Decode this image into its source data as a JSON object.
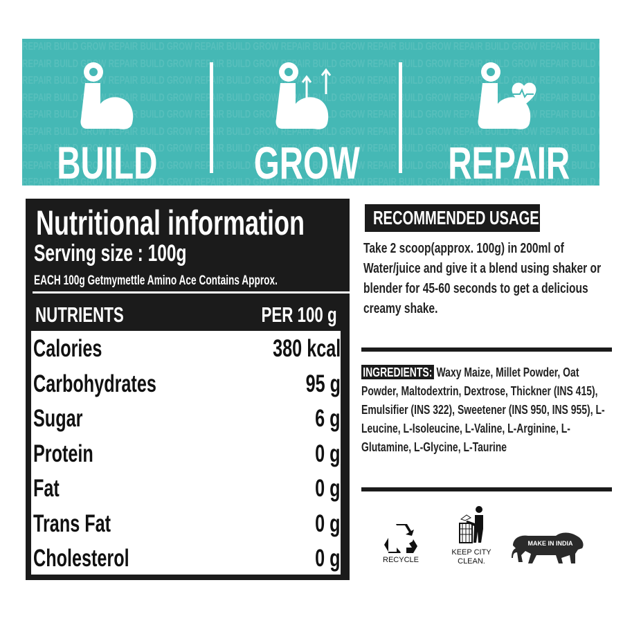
{
  "banner": {
    "background_color": "#45b8b5",
    "pattern_text": "REPAIR BUILD GROW",
    "features": [
      {
        "label": "BUILD",
        "icon": "flexed-arm-dumbbell-icon"
      },
      {
        "label": "GROW",
        "icon": "flexed-arm-up-arrows-icon"
      },
      {
        "label": "REPAIR",
        "icon": "flexed-arm-heart-icon"
      }
    ]
  },
  "nutrition": {
    "title": "Nutritional information",
    "serving_size": "Serving size : 100g",
    "subtitle": "EACH 100g Getmymettle Amino Ace Contains Approx.",
    "col_nutrients": "NUTRIENTS",
    "col_per": "PER 100 g",
    "rows": [
      {
        "name": "Calories",
        "value": "380 kcal"
      },
      {
        "name": "Carbohydrates",
        "value": "95 g"
      },
      {
        "name": "Sugar",
        "value": "6 g"
      },
      {
        "name": "Protein",
        "value": "0 g"
      },
      {
        "name": "Fat",
        "value": "0 g"
      },
      {
        "name": "Trans Fat",
        "value": "0 g"
      },
      {
        "name": "Cholesterol",
        "value": "0 g"
      }
    ]
  },
  "usage": {
    "label": "RECOMMENDED USAGE:",
    "text": "Take 2 scoop(approx. 100g) in 200ml of Water/juice and give it a blend using shaker or blender for 45-60 seconds to get a delicious creamy shake."
  },
  "ingredients": {
    "label": "INGREDIENTS:",
    "text": "Waxy Maize, Millet Powder, Oat Powder, Maltodextrin, Dextrose, Thickner (INS 415), Emulsifier (INS 322), Sweetener (INS 950, INS 955), L-Leucine, L-Isoleucine, L-Valine, L-Arginine, L-Glutamine, L-Glycine, L-Taurine"
  },
  "badges": {
    "recycle": "RECYCLE",
    "keep_city_clean_1": "KEEP CITY",
    "keep_city_clean_2": "CLEAN.",
    "make_in_india": "MAKE IN INDIA"
  }
}
